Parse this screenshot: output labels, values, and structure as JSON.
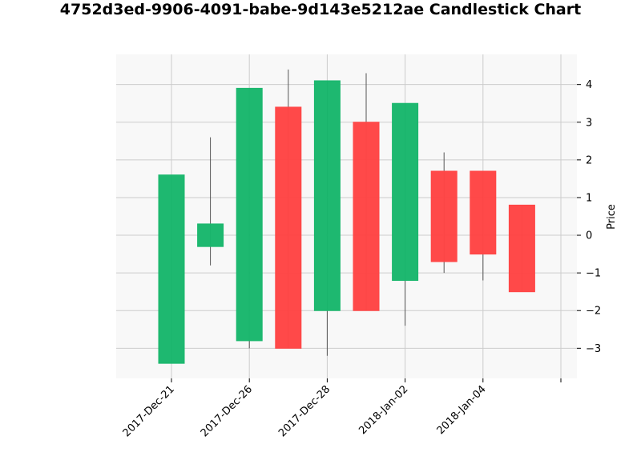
{
  "chart_data": {
    "type": "candlestick",
    "title": "4752d3ed-9906-4091-babe-9d143e5212ae Candlestick Chart",
    "xlabel": "",
    "ylabel": "Price",
    "ylim": [
      -3.8,
      4.8
    ],
    "yticks": [
      -3,
      -2,
      -1,
      0,
      1,
      2,
      3,
      4
    ],
    "x_tick_labels": [
      {
        "index": 0,
        "label": "2017-Dec-21"
      },
      {
        "index": 2,
        "label": "2017-Dec-26"
      },
      {
        "index": 4,
        "label": "2017-Dec-28"
      },
      {
        "index": 6,
        "label": "2018-Jan-02"
      },
      {
        "index": 8,
        "label": "2018-Jan-04"
      },
      {
        "index": 10,
        "label": ""
      }
    ],
    "up_color": "#1ab76d",
    "down_color": "#ff4545",
    "candles": [
      {
        "open": -3.4,
        "high": 1.6,
        "low": -3.4,
        "close": 1.6
      },
      {
        "open": -0.3,
        "high": 2.6,
        "low": -0.8,
        "close": 0.3
      },
      {
        "open": -2.8,
        "high": 3.9,
        "low": -3.0,
        "close": 3.9
      },
      {
        "open": 3.4,
        "high": 4.4,
        "low": -3.0,
        "close": -3.0
      },
      {
        "open": -2.0,
        "high": 4.1,
        "low": -3.2,
        "close": 4.1
      },
      {
        "open": 3.0,
        "high": 4.3,
        "low": -2.0,
        "close": -2.0
      },
      {
        "open": -1.2,
        "high": 3.5,
        "low": -2.4,
        "close": 3.5
      },
      {
        "open": 1.7,
        "high": 2.2,
        "low": -1.0,
        "close": -0.7
      },
      {
        "open": 1.7,
        "high": 1.7,
        "low": -1.2,
        "close": -0.5
      },
      {
        "open": 0.8,
        "high": 0.8,
        "low": -1.5,
        "close": -1.5
      }
    ],
    "grid": true
  }
}
